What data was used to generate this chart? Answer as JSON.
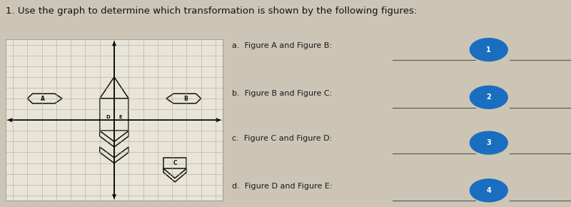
{
  "title": "1. Use the graph to determine which transformation is shown by the following figures:",
  "title_fontsize": 9.5,
  "bg_color": "#ccc5b5",
  "grid_bg": "#e8e4d8",
  "questions": [
    "a.  Figure A and Figure B:",
    "b.  Figure B and Figure C:",
    "c.  Figure C and Figure D:",
    "d.  Figure D and Figure E:"
  ],
  "circle_labels": [
    "1",
    "2",
    "3",
    "4"
  ],
  "circle_color": "#1a6ec0",
  "grid_color": "#b0aa98",
  "figure_color": "#111111",
  "line_color": "#555555"
}
